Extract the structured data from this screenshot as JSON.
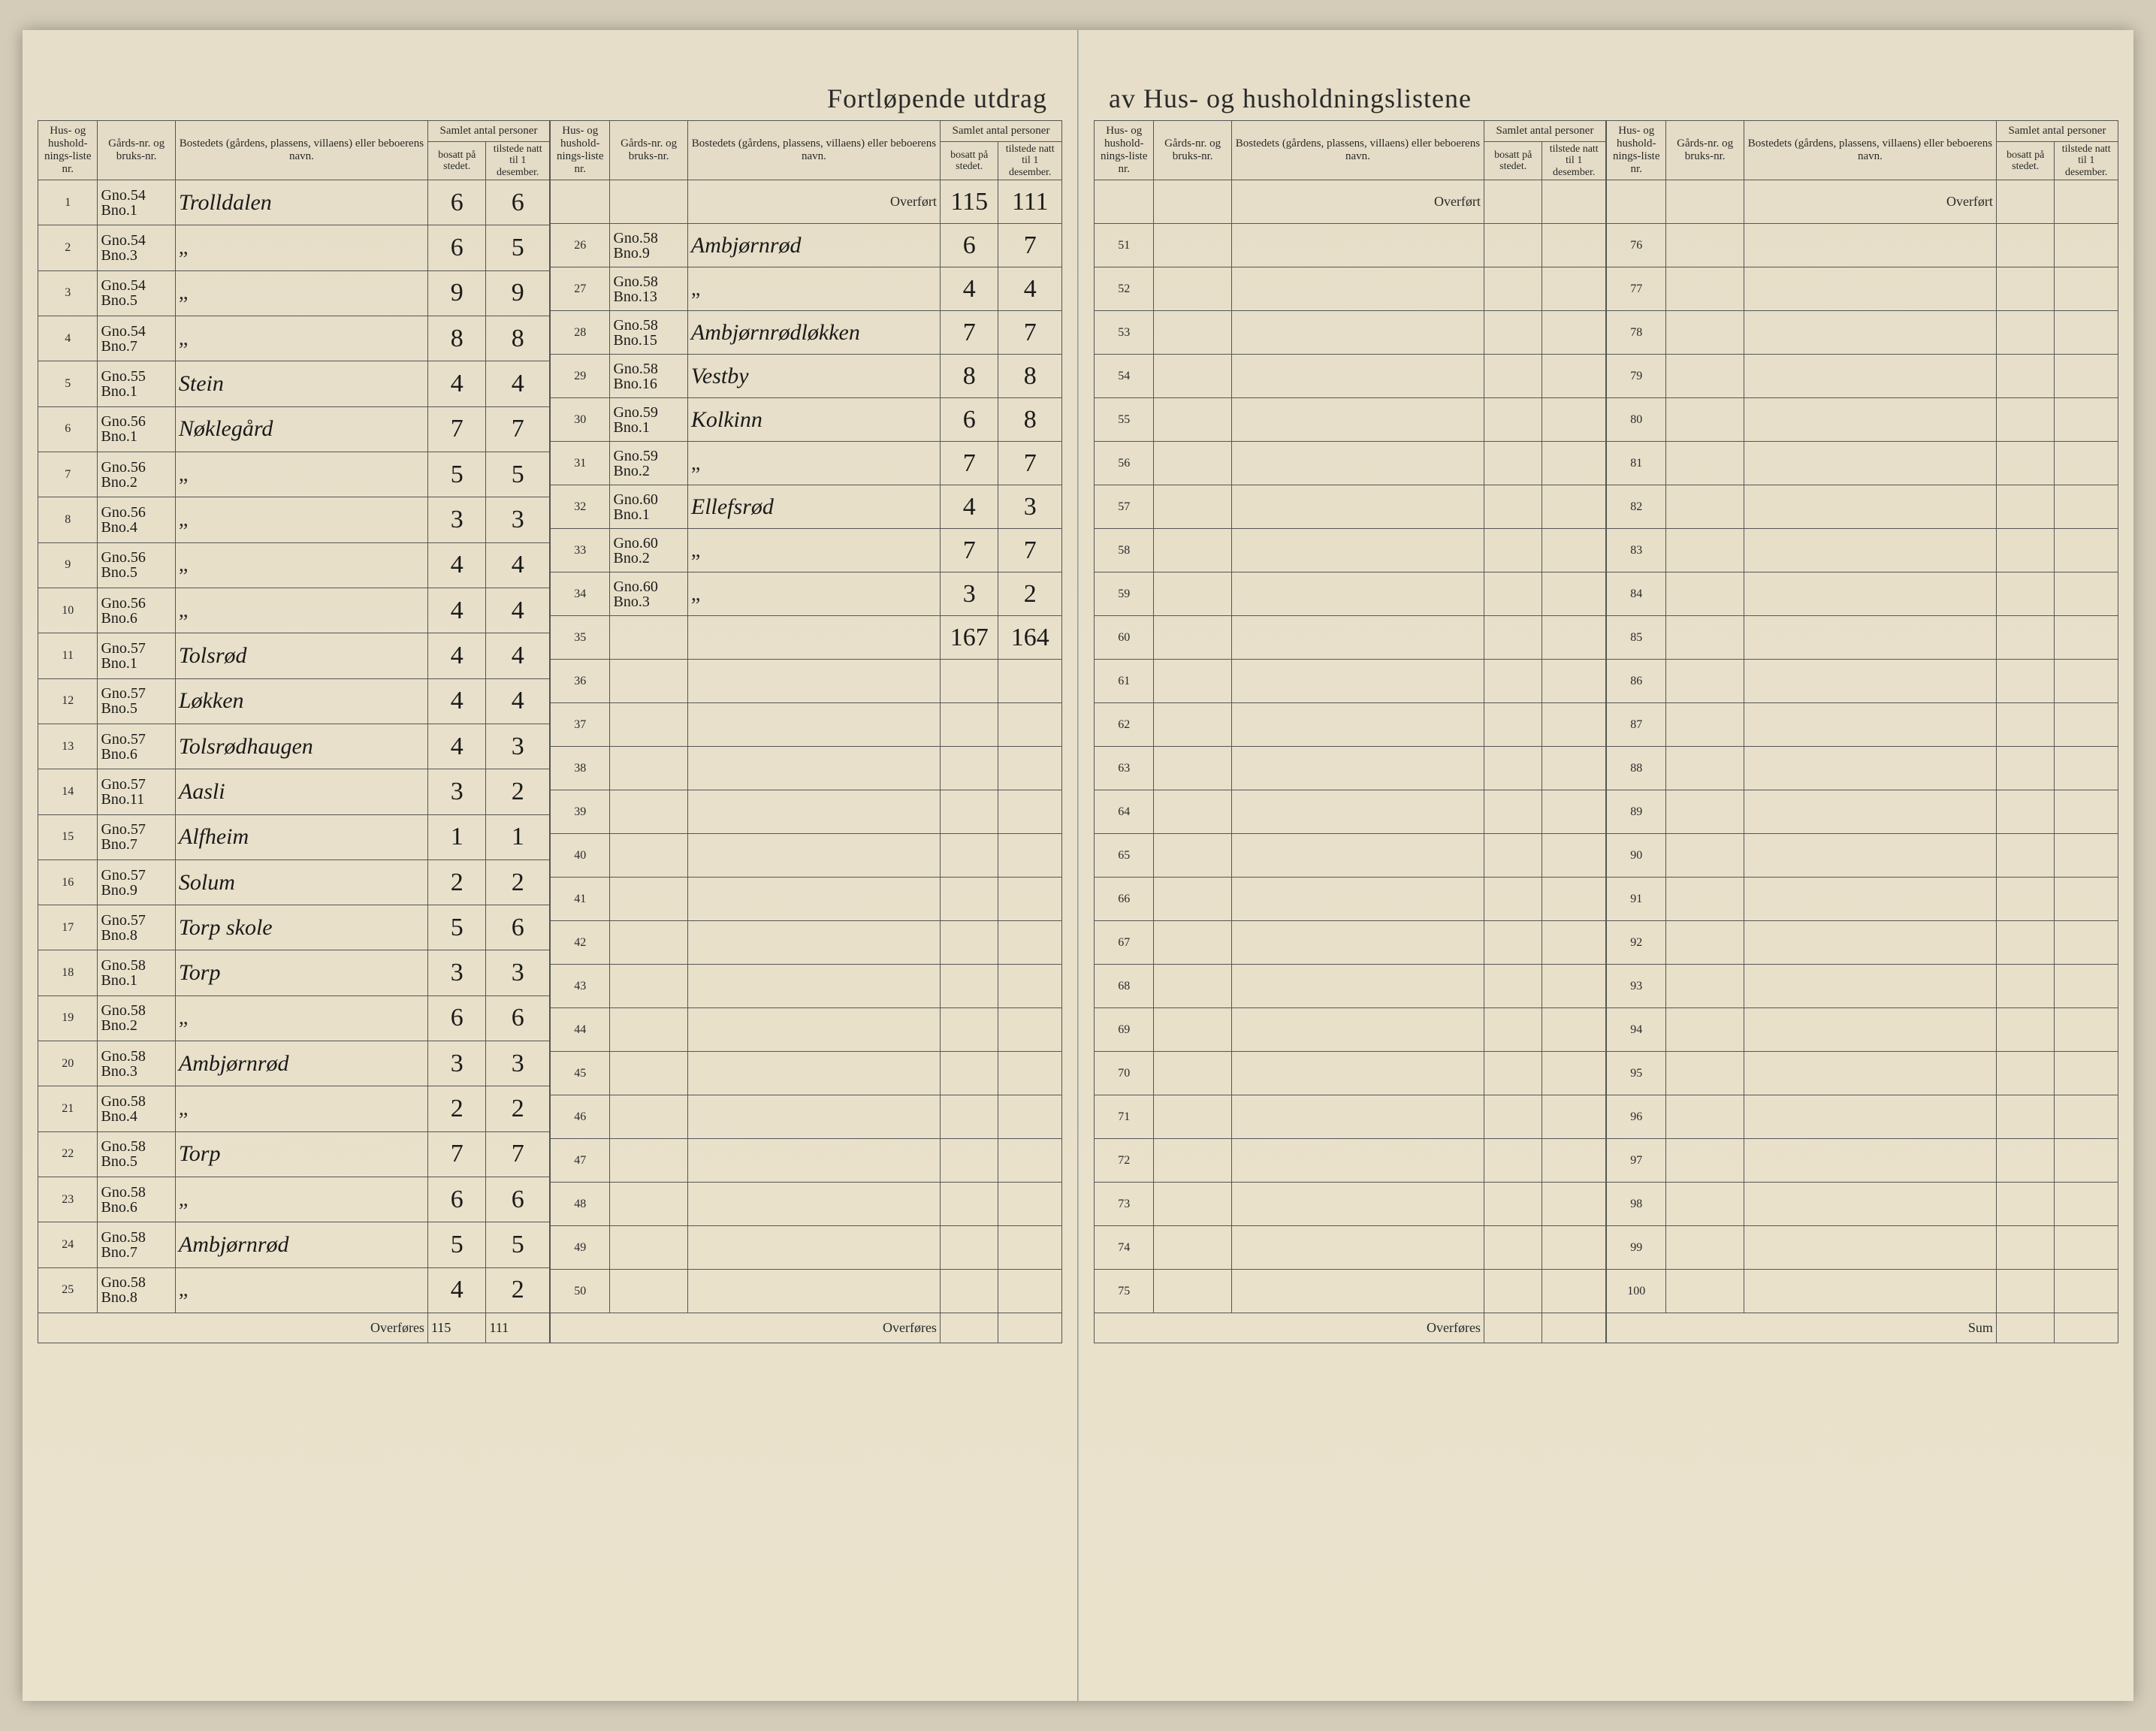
{
  "title_left": "Fortløpende utdrag",
  "title_right": "av Hus- og husholdningslistene",
  "headers": {
    "liste": "Hus- og hushold-nings-liste nr.",
    "gard": "Gårds-nr. og bruks-nr.",
    "bosted": "Bostedets (gårdens, plassens, villaens) eller beboerens navn.",
    "samlet": "Samlet antal personer",
    "bosatt": "bosatt på stedet.",
    "tilstede": "tilstede natt til 1 desember."
  },
  "labels": {
    "overfort": "Overført",
    "overfores": "Overføres",
    "sum": "Sum"
  },
  "left_page": {
    "colA": [
      {
        "n": "1",
        "g1": "Gno.54",
        "g2": "Bno.1",
        "name": "Trolldalen",
        "b": "6",
        "t": "6"
      },
      {
        "n": "2",
        "g1": "Gno.54",
        "g2": "Bno.3",
        "name": "\"",
        "b": "6",
        "t": "5"
      },
      {
        "n": "3",
        "g1": "Gno.54",
        "g2": "Bno.5",
        "name": "\"",
        "b": "9",
        "t": "9"
      },
      {
        "n": "4",
        "g1": "Gno.54",
        "g2": "Bno.7",
        "name": "\"",
        "b": "8",
        "t": "8"
      },
      {
        "n": "5",
        "g1": "Gno.55",
        "g2": "Bno.1",
        "name": "Stein",
        "b": "4",
        "t": "4"
      },
      {
        "n": "6",
        "g1": "Gno.56",
        "g2": "Bno.1",
        "name": "Nøklegård",
        "b": "7",
        "t": "7"
      },
      {
        "n": "7",
        "g1": "Gno.56",
        "g2": "Bno.2",
        "name": "\"",
        "b": "5",
        "t": "5"
      },
      {
        "n": "8",
        "g1": "Gno.56",
        "g2": "Bno.4",
        "name": "\"",
        "b": "3",
        "t": "3"
      },
      {
        "n": "9",
        "g1": "Gno.56",
        "g2": "Bno.5",
        "name": "\"",
        "b": "4",
        "t": "4"
      },
      {
        "n": "10",
        "g1": "Gno.56",
        "g2": "Bno.6",
        "name": "\"",
        "b": "4",
        "t": "4"
      },
      {
        "n": "11",
        "g1": "Gno.57",
        "g2": "Bno.1",
        "name": "Tolsrød",
        "b": "4",
        "t": "4"
      },
      {
        "n": "12",
        "g1": "Gno.57",
        "g2": "Bno.5",
        "name": "Løkken",
        "b": "4",
        "t": "4"
      },
      {
        "n": "13",
        "g1": "Gno.57",
        "g2": "Bno.6",
        "name": "Tolsrødhaugen",
        "b": "4",
        "t": "3"
      },
      {
        "n": "14",
        "g1": "Gno.57",
        "g2": "Bno.11",
        "name": "Aasli",
        "b": "3",
        "t": "2"
      },
      {
        "n": "15",
        "g1": "Gno.57",
        "g2": "Bno.7",
        "name": "Alfheim",
        "b": "1",
        "t": "1"
      },
      {
        "n": "16",
        "g1": "Gno.57",
        "g2": "Bno.9",
        "name": "Solum",
        "b": "2",
        "t": "2"
      },
      {
        "n": "17",
        "g1": "Gno.57",
        "g2": "Bno.8",
        "name": "Torp skole",
        "b": "5",
        "t": "6"
      },
      {
        "n": "18",
        "g1": "Gno.58",
        "g2": "Bno.1",
        "name": "Torp",
        "b": "3",
        "t": "3"
      },
      {
        "n": "19",
        "g1": "Gno.58",
        "g2": "Bno.2",
        "name": "\"",
        "b": "6",
        "t": "6"
      },
      {
        "n": "20",
        "g1": "Gno.58",
        "g2": "Bno.3",
        "name": "Ambjørnrød",
        "b": "3",
        "t": "3"
      },
      {
        "n": "21",
        "g1": "Gno.58",
        "g2": "Bno.4",
        "name": "\"",
        "b": "2",
        "t": "2"
      },
      {
        "n": "22",
        "g1": "Gno.58",
        "g2": "Bno.5",
        "name": "Torp",
        "b": "7",
        "t": "7"
      },
      {
        "n": "23",
        "g1": "Gno.58",
        "g2": "Bno.6",
        "name": "\"",
        "b": "6",
        "t": "6"
      },
      {
        "n": "24",
        "g1": "Gno.58",
        "g2": "Bno.7",
        "name": "Ambjørnrød",
        "b": "5",
        "t": "5"
      },
      {
        "n": "25",
        "g1": "Gno.58",
        "g2": "Bno.8",
        "name": "\"",
        "b": "4",
        "t": "2"
      }
    ],
    "colA_overfores": {
      "b": "115",
      "t": "111"
    },
    "colB_overfort": {
      "b": "115",
      "t": "111"
    },
    "colB": [
      {
        "n": "26",
        "g1": "Gno.58",
        "g2": "Bno.9",
        "name": "Ambjørnrød",
        "b": "6",
        "t": "7"
      },
      {
        "n": "27",
        "g1": "Gno.58",
        "g2": "Bno.13",
        "name": "\"",
        "b": "4",
        "t": "4"
      },
      {
        "n": "28",
        "g1": "Gno.58",
        "g2": "Bno.15",
        "name": "Ambjørnrødløkken",
        "b": "7",
        "t": "7"
      },
      {
        "n": "29",
        "g1": "Gno.58",
        "g2": "Bno.16",
        "name": "Vestby",
        "b": "8",
        "t": "8"
      },
      {
        "n": "30",
        "g1": "Gno.59",
        "g2": "Bno.1",
        "name": "Kolkinn",
        "b": "6",
        "t": "8"
      },
      {
        "n": "31",
        "g1": "Gno.59",
        "g2": "Bno.2",
        "name": "\"",
        "b": "7",
        "t": "7"
      },
      {
        "n": "32",
        "g1": "Gno.60",
        "g2": "Bno.1",
        "name": "Ellefsrød",
        "b": "4",
        "t": "3"
      },
      {
        "n": "33",
        "g1": "Gno.60",
        "g2": "Bno.2",
        "name": "\"",
        "b": "7",
        "t": "7"
      },
      {
        "n": "34",
        "g1": "Gno.60",
        "g2": "Bno.3",
        "name": "\"",
        "b": "3",
        "t": "2"
      },
      {
        "n": "35",
        "g1": "",
        "g2": "",
        "name": "",
        "b": "167",
        "t": "164"
      }
    ],
    "colB_empty_from": 36,
    "colB_empty_to": 50
  },
  "right_page": {
    "colC_from": 51,
    "colC_to": 75,
    "colD_from": 76,
    "colD_to": 100
  }
}
